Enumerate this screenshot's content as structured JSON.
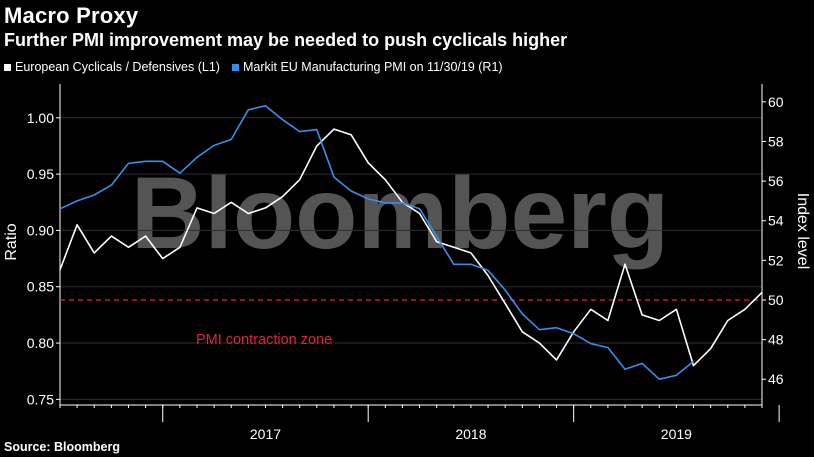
{
  "header": {
    "title": "Macro Proxy",
    "subtitle": "Further PMI improvement may be needed to push cyclicals higher"
  },
  "legend": {
    "items": [
      {
        "label": "European Cyclicals / Defensives (L1)",
        "color": "#ffffff"
      },
      {
        "label": "Markit EU Manufacturing PMI on 11/30/19 (R1)",
        "color": "#3a8ee6"
      }
    ]
  },
  "source": "Source: Bloomberg",
  "watermark": "Bloomberg",
  "annotation": {
    "text": "PMI contraction zone",
    "color": "#e0223c"
  },
  "chart_data": {
    "type": "line",
    "x_axis": {
      "categories": [
        "2017",
        "2018",
        "2019"
      ],
      "range": [
        "2016-07",
        "2019-12"
      ]
    },
    "left_axis": {
      "label": "Ratio",
      "range": [
        0.745,
        1.03
      ],
      "ticks": [
        1.0,
        0.95,
        0.9,
        0.85,
        0.8,
        0.75
      ]
    },
    "right_axis": {
      "label": "Index level",
      "range": [
        44.7,
        60.9
      ],
      "ticks": [
        60,
        58,
        56,
        54,
        52,
        50,
        48,
        46
      ]
    },
    "reference_line": {
      "axis": "right",
      "value": 50,
      "style": "dashed",
      "color": "#e0223c"
    },
    "grid": true,
    "series": [
      {
        "name": "European Cyclicals / Defensives (L1)",
        "axis": "left",
        "color": "#ffffff",
        "points": [
          [
            "2016-07",
            0.865
          ],
          [
            "2016-08",
            0.905
          ],
          [
            "2016-09",
            0.88
          ],
          [
            "2016-10",
            0.895
          ],
          [
            "2016-11",
            0.885
          ],
          [
            "2016-12",
            0.895
          ],
          [
            "2017-01",
            0.875
          ],
          [
            "2017-02",
            0.885
          ],
          [
            "2017-03",
            0.92
          ],
          [
            "2017-04",
            0.915
          ],
          [
            "2017-05",
            0.925
          ],
          [
            "2017-06",
            0.915
          ],
          [
            "2017-07",
            0.92
          ],
          [
            "2017-08",
            0.93
          ],
          [
            "2017-09",
            0.945
          ],
          [
            "2017-10",
            0.975
          ],
          [
            "2017-11",
            0.99
          ],
          [
            "2017-12",
            0.985
          ],
          [
            "2018-01",
            0.96
          ],
          [
            "2018-02",
            0.945
          ],
          [
            "2018-03",
            0.925
          ],
          [
            "2018-04",
            0.915
          ],
          [
            "2018-05",
            0.89
          ],
          [
            "2018-06",
            0.885
          ],
          [
            "2018-07",
            0.88
          ],
          [
            "2018-08",
            0.86
          ],
          [
            "2018-09",
            0.835
          ],
          [
            "2018-10",
            0.81
          ],
          [
            "2018-11",
            0.8
          ],
          [
            "2018-12",
            0.785
          ],
          [
            "2019-01",
            0.81
          ],
          [
            "2019-02",
            0.83
          ],
          [
            "2019-03",
            0.82
          ],
          [
            "2019-04",
            0.87
          ],
          [
            "2019-05",
            0.825
          ],
          [
            "2019-06",
            0.82
          ],
          [
            "2019-07",
            0.83
          ],
          [
            "2019-08",
            0.78
          ],
          [
            "2019-09",
            0.795
          ],
          [
            "2019-10",
            0.82
          ],
          [
            "2019-11",
            0.83
          ],
          [
            "2019-12",
            0.845
          ]
        ]
      },
      {
        "name": "Markit EU Manufacturing PMI on 11/30/19 (R1)",
        "axis": "right",
        "color": "#3a8ee6",
        "points": [
          [
            "2016-07",
            54.6
          ],
          [
            "2016-08",
            55.0
          ],
          [
            "2016-09",
            55.3
          ],
          [
            "2016-10",
            55.8
          ],
          [
            "2016-11",
            56.9
          ],
          [
            "2016-12",
            57.0
          ],
          [
            "2017-01",
            57.0
          ],
          [
            "2017-02",
            56.4
          ],
          [
            "2017-03",
            57.2
          ],
          [
            "2017-04",
            57.8
          ],
          [
            "2017-05",
            58.1
          ],
          [
            "2017-06",
            59.6
          ],
          [
            "2017-07",
            59.8
          ],
          [
            "2017-08",
            59.1
          ],
          [
            "2017-09",
            58.5
          ],
          [
            "2017-10",
            58.6
          ],
          [
            "2017-11",
            56.2
          ],
          [
            "2017-12",
            55.5
          ],
          [
            "2018-01",
            55.1
          ],
          [
            "2018-02",
            54.9
          ],
          [
            "2018-03",
            54.9
          ],
          [
            "2018-04",
            54.6
          ],
          [
            "2018-05",
            53.2
          ],
          [
            "2018-06",
            51.8
          ],
          [
            "2018-07",
            51.8
          ],
          [
            "2018-08",
            51.5
          ],
          [
            "2018-09",
            50.5
          ],
          [
            "2018-10",
            49.3
          ],
          [
            "2018-11",
            48.5
          ],
          [
            "2018-12",
            48.6
          ],
          [
            "2019-01",
            48.3
          ],
          [
            "2019-02",
            47.8
          ],
          [
            "2019-03",
            47.6
          ],
          [
            "2019-04",
            46.5
          ],
          [
            "2019-05",
            46.8
          ],
          [
            "2019-06",
            46.0
          ],
          [
            "2019-07",
            46.2
          ],
          [
            "2019-08",
            46.9
          ]
        ]
      }
    ]
  }
}
